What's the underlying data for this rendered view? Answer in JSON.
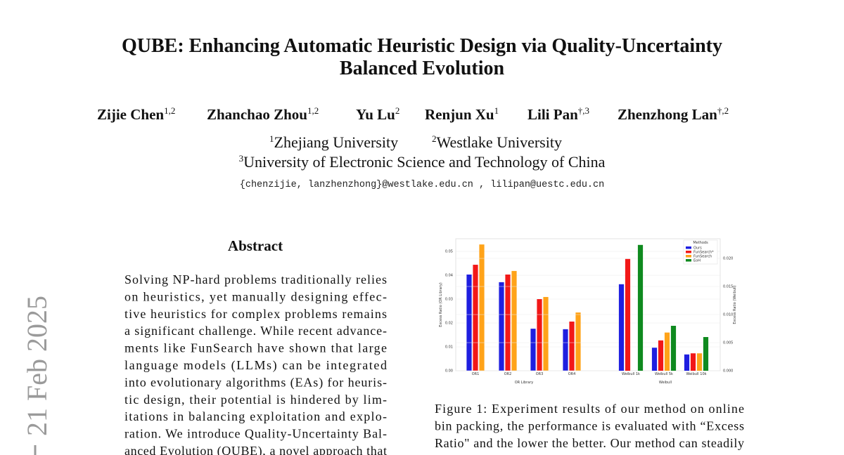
{
  "header": {
    "title": [
      "QUBE: Enhancing Automatic Heuristic Design via Quality-Uncertainty",
      "Balanced Evolution"
    ],
    "authors": [
      {
        "name": "Zijie Chen",
        "affil": "1,2"
      },
      {
        "name": "Zhanchao Zhou",
        "affil": "1,2"
      },
      {
        "name": "Yu Lu",
        "affil": "2"
      },
      {
        "name": "Renjun Xu",
        "affil": "1"
      },
      {
        "name": "Lili Pan",
        "affil": "†,3"
      },
      {
        "name": "Zhenzhong Lan",
        "affil": "†,2"
      }
    ],
    "affiliations": [
      {
        "mark": "1",
        "text": "Zhejiang University"
      },
      {
        "mark": "2",
        "text": "Westlake University"
      },
      {
        "mark": "3",
        "text": "University of Electronic Science and Technology of China"
      }
    ],
    "email": "{chenzijie, lanzhenzhong}@westlake.edu.cn , lilipan@uestc.edu.cn"
  },
  "side_stamp": "21 Feb 2025",
  "abstract": {
    "heading": "Abstract",
    "lines": [
      "Solving NP-hard problems traditionally relies",
      "on heuristics, yet manually designing effec-",
      "tive heuristics for complex problems remains",
      "a significant challenge. While recent advance-",
      "ments like FunSearch have shown that large",
      "language models (LLMs) can be integrated",
      "into evolutionary algorithms (EAs) for heuris-",
      "tic design, their potential is hindered by lim-",
      "itations in balancing exploitation and explo-",
      "ration. We introduce Quality-Uncertainty Bal-",
      "anced Evolution (QUBE), a novel approach that"
    ]
  },
  "figure": {
    "caption": [
      "Figure 1: Experiment results of our method on online",
      "bin packing, the performance is evaluated with “Excess",
      "Ratio\" and the lower the better. Our method can steadily"
    ]
  },
  "chart_data": [
    {
      "type": "bar",
      "xlabel": "OR Library",
      "ylabel": "Excess Ratio (OR Library)",
      "y_axis_side": "left",
      "categories": [
        "OR1",
        "OR2",
        "OR3",
        "OR4"
      ],
      "series": [
        {
          "color": "#1f1fe0",
          "values": [
            0.0403,
            0.0371,
            0.0176,
            0.0174
          ]
        },
        {
          "color": "#f21818",
          "values": [
            0.0444,
            0.0403,
            0.03,
            0.0206
          ]
        },
        {
          "color": "#ffa319",
          "values": [
            0.0529,
            0.0418,
            0.0309,
            0.0244
          ]
        }
      ],
      "ylim": [
        0,
        0.0553
      ],
      "yticks": [
        {
          "value": 0,
          "label": "0.00"
        },
        0.01,
        0.02,
        0.03,
        0.04,
        0.05
      ],
      "grid": true
    },
    {
      "type": "bar",
      "xlabel": "Weibull",
      "ylabel": "Excess Ratio (Weibull)",
      "y_axis_side": "right",
      "categories": [
        "Weibull 1k",
        "Weibull 5k",
        "Weibull 10k"
      ],
      "legend_title": "Methods",
      "legend": "upper right",
      "series": [
        {
          "name": "Ours",
          "color": "#1f1fe0",
          "values": [
            0.0154,
            0.0041,
            0.0029
          ]
        },
        {
          "name": "FunSearch*",
          "color": "#f21818",
          "values": [
            0.0199,
            0.0054,
            0.0031
          ]
        },
        {
          "name": "FunSearch",
          "color": "#ffa319",
          "values": [
            null,
            0.0068,
            0.0031
          ]
        },
        {
          "name": "EoH",
          "color": "#0f8a1f",
          "values": [
            0.0224,
            0.008,
            0.006
          ]
        }
      ],
      "ylim": [
        0,
        0.0235
      ],
      "yticks": [
        {
          "value": 0,
          "label": "0.000"
        },
        {
          "value": 0.005,
          "label": "0.005"
        },
        {
          "value": 0.01,
          "label": "0.010"
        },
        {
          "value": 0.015,
          "label": "0.015"
        },
        {
          "value": 0.02,
          "label": "0.020"
        }
      ],
      "grid": true
    }
  ]
}
